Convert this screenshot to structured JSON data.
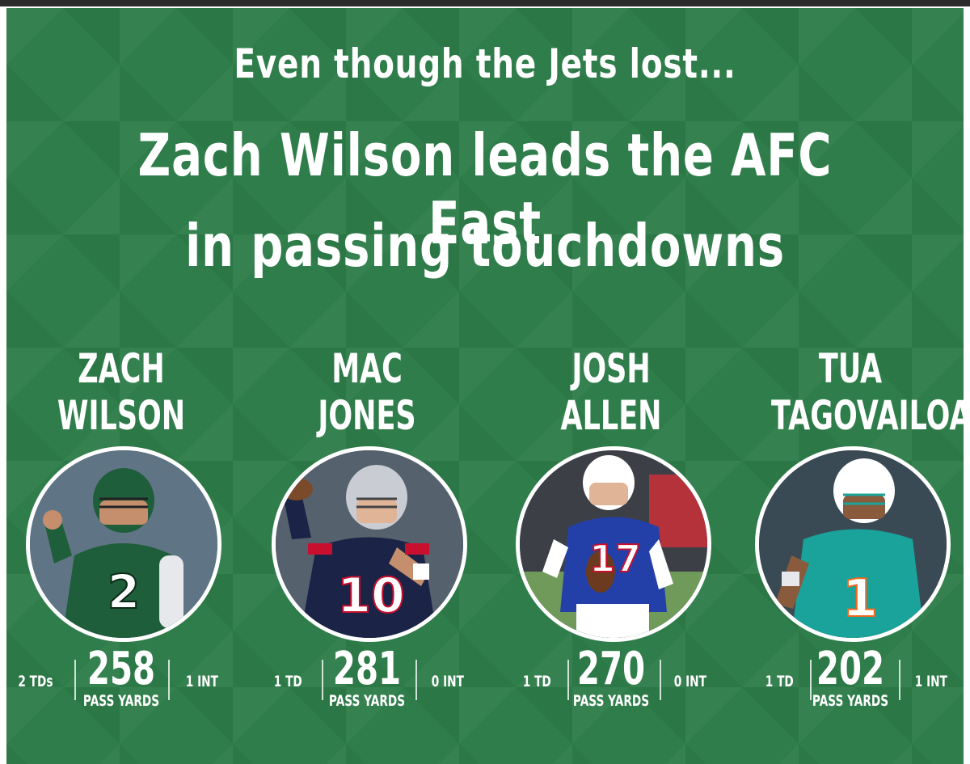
{
  "headline": {
    "kicker": "Even though the Jets lost...",
    "title_line1": "Zach Wilson leads the AFC East",
    "title_line2": "in passing touchdowns"
  },
  "colors": {
    "background": "#2e7d4a",
    "text": "#ffffff"
  },
  "players": [
    {
      "name_line1": "ZACH",
      "name_line2": "WILSON",
      "jersey_number": "2",
      "jersey_color": "#1f5e3a",
      "helmet_color": "#1f5e3a",
      "pants_color": "#ffffff",
      "tds": "2 TDs",
      "yards": "258",
      "yards_label": "PASS YARDS",
      "ints": "1 INT"
    },
    {
      "name_line1": "MAC",
      "name_line2": "JONES",
      "jersey_number": "10",
      "jersey_color": "#1b2347",
      "helmet_color": "#c9ccd3",
      "pants_color": "#c9ccd3",
      "tds": "1 TD",
      "yards": "281",
      "yards_label": "PASS YARDS",
      "ints": "0 INT"
    },
    {
      "name_line1": "JOSH",
      "name_line2": "ALLEN",
      "jersey_number": "17",
      "jersey_color": "#2340a8",
      "helmet_color": "#ffffff",
      "pants_color": "#ffffff",
      "tds": "1 TD",
      "yards": "270",
      "yards_label": "PASS YARDS",
      "ints": "0 INT"
    },
    {
      "name_line1": "TUA",
      "name_line2": "TAGOVAILOA",
      "jersey_number": "1",
      "jersey_color": "#1aa39a",
      "helmet_color": "#ffffff",
      "pants_color": "#ffffff",
      "tds": "1 TD",
      "yards": "202",
      "yards_label": "PASS YARDS",
      "ints": "1 INT"
    }
  ]
}
